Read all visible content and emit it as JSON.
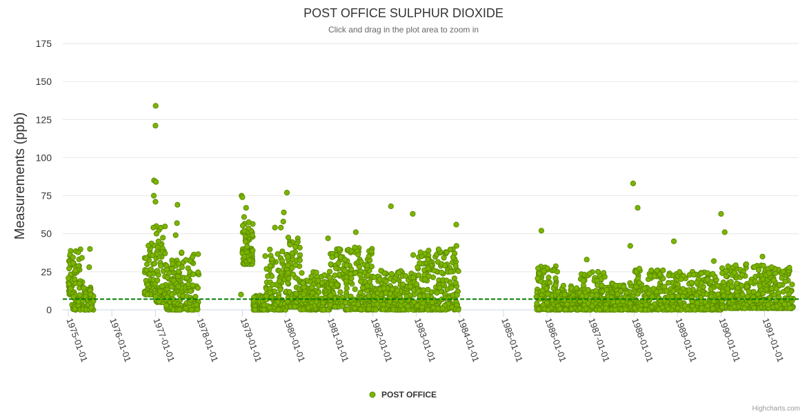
{
  "chart_data": {
    "type": "scatter",
    "title": "POST OFFICE SULPHUR DIOXIDE",
    "subtitle": "Click and drag in the plot area to zoom in",
    "ylabel": "Measurements (ppb)",
    "xlabel": "",
    "ylim": [
      0,
      175
    ],
    "yticks": [
      0,
      25,
      50,
      75,
      100,
      125,
      150,
      175
    ],
    "x_range": [
      "1974-11-15",
      "1991-10-15"
    ],
    "x_tick_labels": [
      "1975-01-01",
      "1976-01-01",
      "1977-01-01",
      "1978-01-01",
      "1979-01-01",
      "1980-01-01",
      "1981-01-01",
      "1982-01-01",
      "1983-01-01",
      "1984-01-01",
      "1985-01-01",
      "1986-01-01",
      "1987-01-01",
      "1988-01-01",
      "1989-01-01",
      "1990-01-01",
      "1991-01-01"
    ],
    "reference_line": 7,
    "grid": true,
    "legend": "bottom-center",
    "marker_color": "#7cb500",
    "marker_border": "#5a8a00",
    "reference_color": "#007a00",
    "series": [
      {
        "name": "POST OFFICE",
        "clusters": [
          {
            "start": "1975-01-01",
            "end": "1975-02-01",
            "min": 10,
            "max": 39,
            "n": 45
          },
          {
            "start": "1975-02-01",
            "end": "1975-05-01",
            "min": 0,
            "max": 40,
            "n": 60
          },
          {
            "start": "1975-05-01",
            "end": "1975-08-01",
            "min": 0,
            "max": 15,
            "n": 60
          },
          {
            "start": "1976-10-01",
            "end": "1977-01-01",
            "min": 10,
            "max": 45,
            "n": 60
          },
          {
            "start": "1977-01-01",
            "end": "1977-04-01",
            "min": 5,
            "max": 55,
            "n": 70
          },
          {
            "start": "1977-04-01",
            "end": "1977-07-01",
            "min": 0,
            "max": 35,
            "n": 80
          },
          {
            "start": "1977-07-01",
            "end": "1977-12-31",
            "min": 0,
            "max": 40,
            "n": 110
          },
          {
            "start": "1979-01-01",
            "end": "1979-04-01",
            "min": 30,
            "max": 60,
            "n": 80
          },
          {
            "start": "1979-04-01",
            "end": "1979-07-01",
            "min": 0,
            "max": 10,
            "n": 60
          },
          {
            "start": "1979-07-01",
            "end": "1980-01-01",
            "min": 0,
            "max": 40,
            "n": 130
          },
          {
            "start": "1980-01-01",
            "end": "1980-05-01",
            "min": 2,
            "max": 48,
            "n": 110
          },
          {
            "start": "1980-05-01",
            "end": "1981-01-01",
            "min": 0,
            "max": 25,
            "n": 170
          },
          {
            "start": "1981-01-01",
            "end": "1981-05-01",
            "min": 2,
            "max": 40,
            "n": 90
          },
          {
            "start": "1981-05-01",
            "end": "1982-01-01",
            "min": 0,
            "max": 41,
            "n": 170
          },
          {
            "start": "1982-01-01",
            "end": "1983-01-01",
            "min": 0,
            "max": 26,
            "n": 220
          },
          {
            "start": "1983-01-01",
            "end": "1983-12-20",
            "min": 0,
            "max": 40,
            "n": 230
          },
          {
            "start": "1985-10-01",
            "end": "1986-04-01",
            "min": 0,
            "max": 29,
            "n": 130
          },
          {
            "start": "1986-04-01",
            "end": "1986-10-01",
            "min": 0,
            "max": 16,
            "n": 120
          },
          {
            "start": "1986-10-01",
            "end": "1987-05-01",
            "min": 0,
            "max": 25,
            "n": 150
          },
          {
            "start": "1987-05-01",
            "end": "1988-01-01",
            "min": 0,
            "max": 18,
            "n": 170
          },
          {
            "start": "1988-01-01",
            "end": "1989-01-01",
            "min": 0,
            "max": 26,
            "n": 220
          },
          {
            "start": "1989-01-01",
            "end": "1990-01-01",
            "min": 0,
            "max": 25,
            "n": 220
          },
          {
            "start": "1990-01-01",
            "end": "1991-01-01",
            "min": 1,
            "max": 30,
            "n": 220
          },
          {
            "start": "1991-01-01",
            "end": "1991-09-01",
            "min": 1,
            "max": 28,
            "n": 170
          }
        ],
        "outliers": [
          [
            "1977-01-03",
            134
          ],
          [
            "1977-01-01",
            121
          ],
          [
            "1976-12-20",
            85
          ],
          [
            "1977-01-05",
            84
          ],
          [
            "1976-12-18",
            75
          ],
          [
            "1977-01-01",
            71
          ],
          [
            "1977-01-08",
            55
          ],
          [
            "1976-12-15",
            54
          ],
          [
            "1977-01-10",
            50
          ],
          [
            "1977-07-05",
            69
          ],
          [
            "1977-07-01",
            57
          ],
          [
            "1977-06-20",
            49
          ],
          [
            "1975-07-01",
            40
          ],
          [
            "1975-06-25",
            28
          ],
          [
            "1978-12-25",
            75
          ],
          [
            "1979-01-01",
            74
          ],
          [
            "1979-02-01",
            67
          ],
          [
            "1979-01-15",
            61
          ],
          [
            "1978-12-20",
            10
          ],
          [
            "1980-01-10",
            77
          ],
          [
            "1979-12-15",
            64
          ],
          [
            "1979-12-10",
            58
          ],
          [
            "1979-10-01",
            54
          ],
          [
            "1979-11-20",
            54
          ],
          [
            "1980-12-20",
            47
          ],
          [
            "1981-08-10",
            51
          ],
          [
            "1981-08-01",
            41
          ],
          [
            "1982-06-01",
            68
          ],
          [
            "1982-12-01",
            63
          ],
          [
            "1982-12-05",
            36
          ],
          [
            "1983-12-01",
            56
          ],
          [
            "1983-12-03",
            42
          ],
          [
            "1985-11-15",
            52
          ],
          [
            "1986-12-01",
            33
          ],
          [
            "1987-12-25",
            83
          ],
          [
            "1988-02-01",
            67
          ],
          [
            "1987-12-01",
            42
          ],
          [
            "1988-12-01",
            45
          ],
          [
            "1990-01-01",
            63
          ],
          [
            "1990-02-01",
            51
          ],
          [
            "1990-12-15",
            35
          ],
          [
            "1990-08-01",
            30
          ],
          [
            "1991-03-01",
            28
          ],
          [
            "1989-11-01",
            32
          ],
          [
            "1988-09-01",
            26
          ],
          [
            "1988-02-15",
            27
          ]
        ]
      }
    ]
  },
  "credits": "Highcharts.com"
}
